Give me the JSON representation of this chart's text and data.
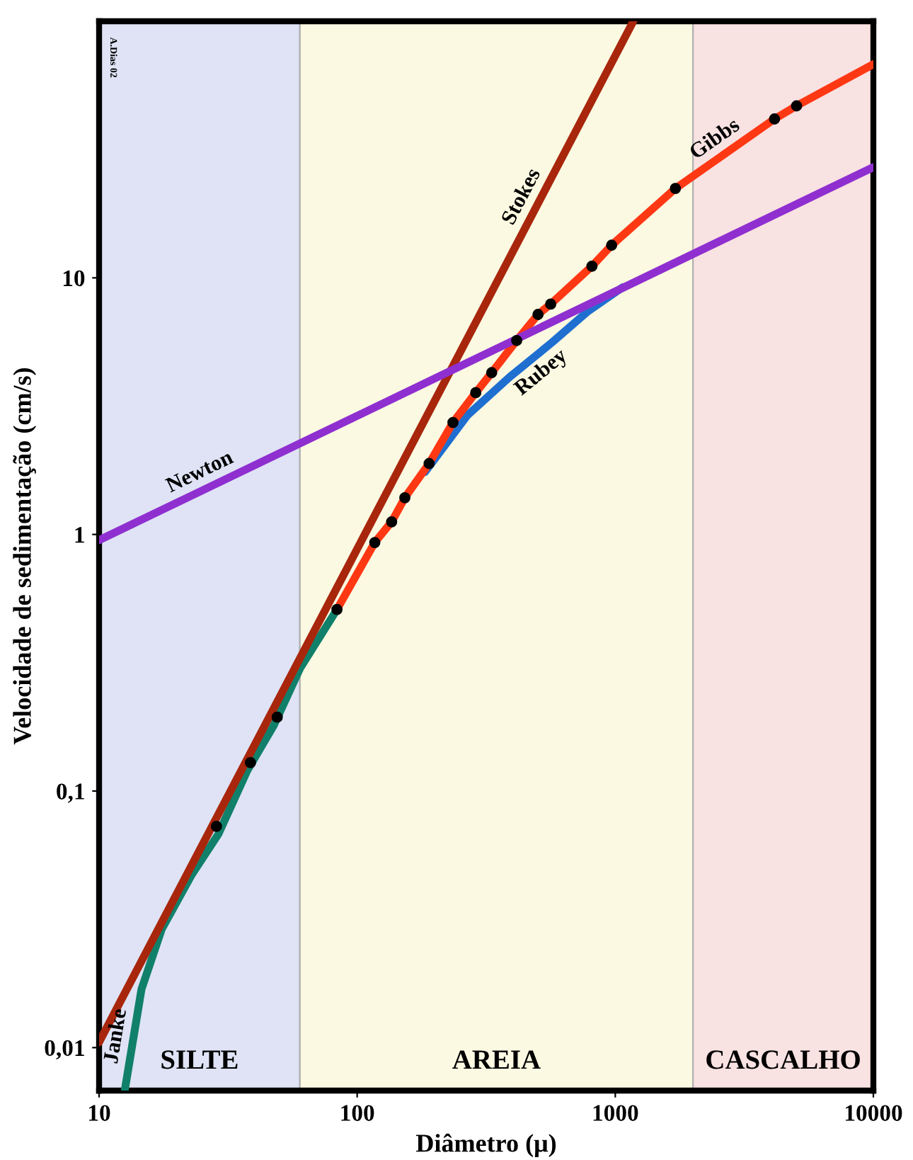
{
  "chart_data": {
    "type": "line",
    "xlabel": "Diâmetro (μ)",
    "ylabel": "Velocidade de sedimentação (cm/s)",
    "log": "xy",
    "xlim": [
      10,
      10000
    ],
    "ylim": [
      0.0068,
      100
    ],
    "xticks": [
      10,
      100,
      1000,
      10000
    ],
    "yticks": [
      {
        "value": 0.01,
        "label": "0,01"
      },
      {
        "value": 0.1,
        "label": "0,1"
      },
      {
        "value": 1,
        "label": "1"
      },
      {
        "value": 10,
        "label": "10"
      }
    ],
    "grid": false,
    "legend": false,
    "marker": "none",
    "line_style": "solid",
    "bands": [
      {
        "axis": "x",
        "from": 10,
        "to": 60,
        "label": "SILTE",
        "color": "#dfe3f5"
      },
      {
        "axis": "x",
        "from": 60,
        "to": 2000,
        "label": "AREIA",
        "color": "#fbf9e2"
      },
      {
        "axis": "x",
        "from": 2000,
        "to": 10000,
        "label": "CASCALHO",
        "color": "#f9e2e2"
      }
    ],
    "annotations": [
      "A.Dias 02"
    ],
    "series": [
      {
        "name": "Janke",
        "color": "#11806a",
        "x": [
          12.6,
          14.6,
          17.5,
          22.8,
          29,
          37.5,
          47.5,
          60,
          83.5
        ],
        "values": [
          0.0069,
          0.0169,
          0.029,
          0.047,
          0.068,
          0.12,
          0.18,
          0.3,
          0.51
        ]
      },
      {
        "name": "Rubey",
        "color": "#1f6fd0",
        "x": [
          183,
          267,
          389,
          569,
          778,
          1070
        ],
        "values": [
          1.75,
          2.91,
          4.1,
          5.6,
          7.36,
          9.2
        ]
      },
      {
        "name": "Stokes",
        "color": "#a8260c",
        "x": [
          10,
          1175
        ],
        "values": [
          0.0105,
          100
        ]
      },
      {
        "name": "Gibbs",
        "color": "#ff3814",
        "x": [
          83.5,
          117,
          136,
          153,
          190,
          235,
          288,
          332,
          415,
          502,
          562,
          812,
          968,
          1710,
          4140,
          5040,
          10000
        ],
        "values": [
          0.51,
          0.93,
          1.12,
          1.39,
          1.89,
          2.73,
          3.57,
          4.27,
          5.7,
          7.2,
          7.9,
          11.1,
          13.4,
          22.3,
          41.6,
          46.8,
          68
        ]
      },
      {
        "name": "Newton",
        "color": "#8f2fd0",
        "x": [
          10,
          10000
        ],
        "values": [
          0.95,
          27
        ]
      },
      {
        "type": "scatter",
        "color": "#000000",
        "marker": "circle",
        "x": [
          28.5,
          38.6,
          49,
          83.5,
          117,
          136,
          153,
          190,
          235,
          288,
          332,
          415,
          502,
          562,
          812,
          968,
          1710,
          4140,
          5040
        ],
        "values": [
          0.0728,
          0.129,
          0.194,
          0.51,
          0.93,
          1.12,
          1.39,
          1.89,
          2.73,
          3.57,
          4.27,
          5.7,
          7.2,
          7.9,
          11.1,
          13.4,
          22.3,
          41.6,
          46.8
        ]
      }
    ]
  }
}
